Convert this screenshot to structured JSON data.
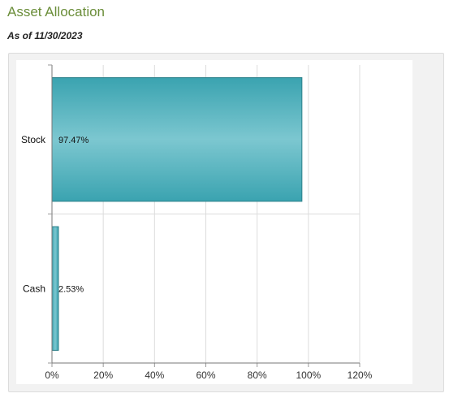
{
  "header": {
    "title": "Asset Allocation",
    "as_of": "As of 11/30/2023"
  },
  "colors": {
    "bar": "#3aa3b0",
    "bar_light": "#7cc7d0",
    "bar_border": "#2b7f89",
    "title": "#6b8e3a",
    "grid": "#dcdcdc"
  },
  "chart_data": {
    "type": "bar",
    "orientation": "horizontal",
    "categories": [
      "Stock",
      "Cash"
    ],
    "values": [
      97.47,
      2.53
    ],
    "data_labels": [
      "97.47%",
      "2.53%"
    ],
    "xlim": [
      0,
      120
    ],
    "xticks": [
      0,
      20,
      40,
      60,
      80,
      100,
      120
    ],
    "xtick_labels": [
      "0%",
      "20%",
      "40%",
      "60%",
      "80%",
      "100%",
      "120%"
    ],
    "grid": true,
    "legend": false
  }
}
